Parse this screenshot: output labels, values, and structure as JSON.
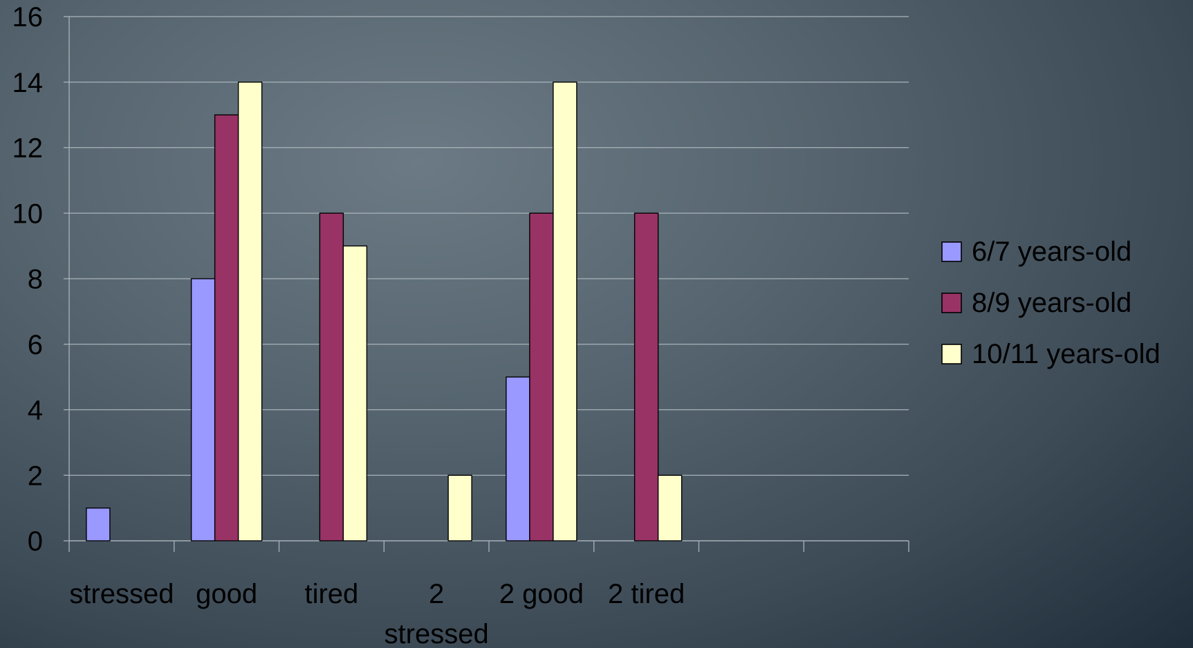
{
  "chart_data": {
    "type": "bar",
    "categories": [
      "stressed",
      "good",
      "tired",
      "2 stressed",
      "2 good",
      "2 tired",
      "",
      ""
    ],
    "category_lines": [
      [
        "stressed"
      ],
      [
        "good"
      ],
      [
        "tired"
      ],
      [
        "2",
        "stressed"
      ],
      [
        "2 good"
      ],
      [
        "2 tired"
      ],
      [],
      []
    ],
    "series": [
      {
        "name": "6/7 years-old",
        "color": "#9999ff",
        "values": [
          1,
          8,
          0,
          0,
          5,
          0,
          0,
          0
        ]
      },
      {
        "name": "8/9 years-old",
        "color": "#993366",
        "values": [
          0,
          13,
          10,
          0,
          10,
          10,
          0,
          0
        ]
      },
      {
        "name": "10/11 years-old",
        "color": "#ffffcc",
        "values": [
          0,
          14,
          9,
          2,
          14,
          2,
          0,
          0
        ]
      }
    ],
    "ylim": [
      0,
      16
    ],
    "yticks": [
      "0",
      "2",
      "4",
      "6",
      "8",
      "10",
      "12",
      "14",
      "16"
    ],
    "grid": true,
    "legend_position": "right"
  }
}
